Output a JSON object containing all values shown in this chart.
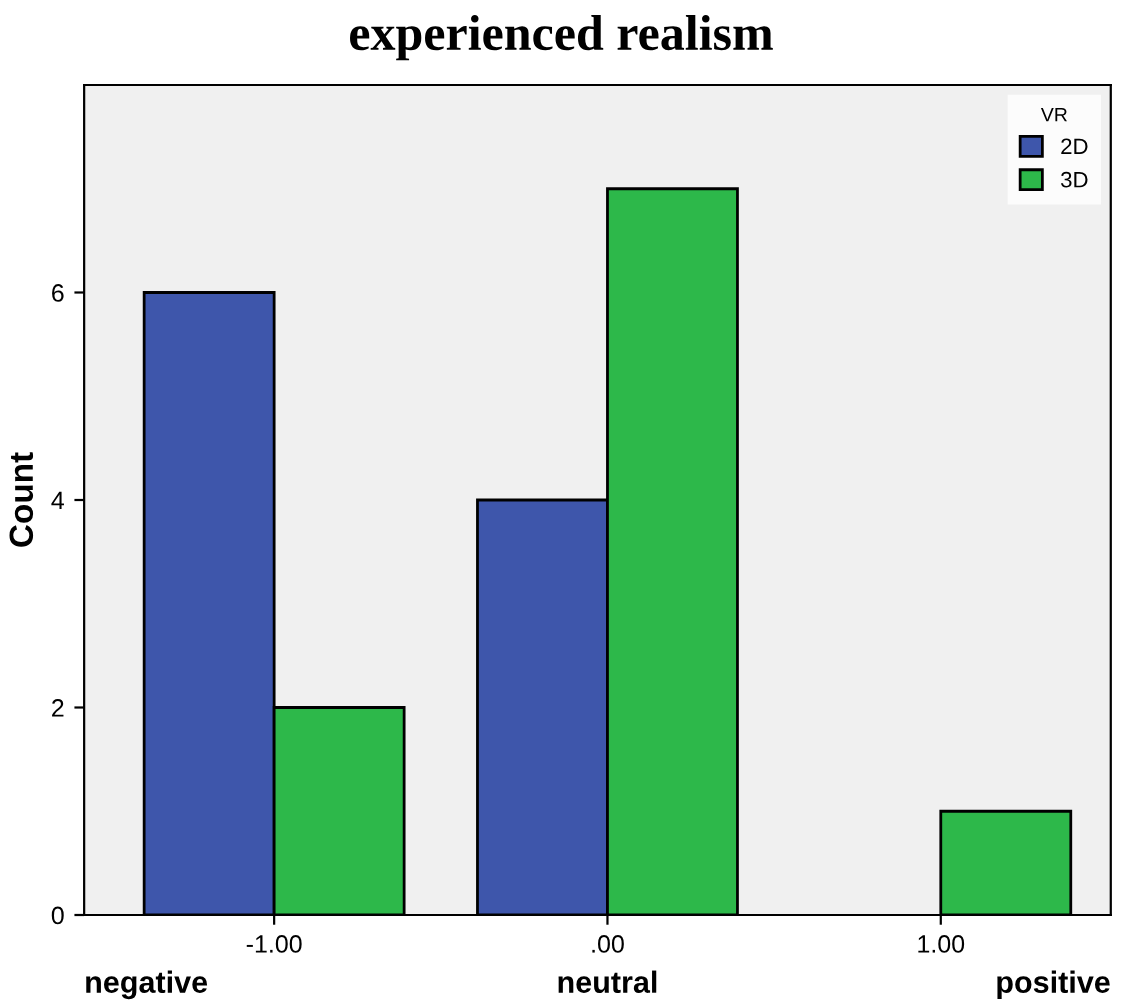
{
  "chart_data": {
    "type": "bar",
    "title": "experienced realism",
    "ylabel": "Count",
    "categories": [
      "-1.00",
      ".00",
      "1.00"
    ],
    "series": [
      {
        "name": "2D",
        "color": "#3e56ab",
        "values": [
          6,
          4,
          null
        ]
      },
      {
        "name": "3D",
        "color": "#2db84a",
        "values": [
          2,
          7,
          1
        ]
      }
    ],
    "ylim": [
      0,
      8
    ],
    "yticks": [
      0,
      2,
      4,
      6
    ],
    "grid": false,
    "legend": "top right",
    "legend_title": "VR",
    "annotations": [
      "negative",
      "neutral",
      "positive"
    ]
  }
}
